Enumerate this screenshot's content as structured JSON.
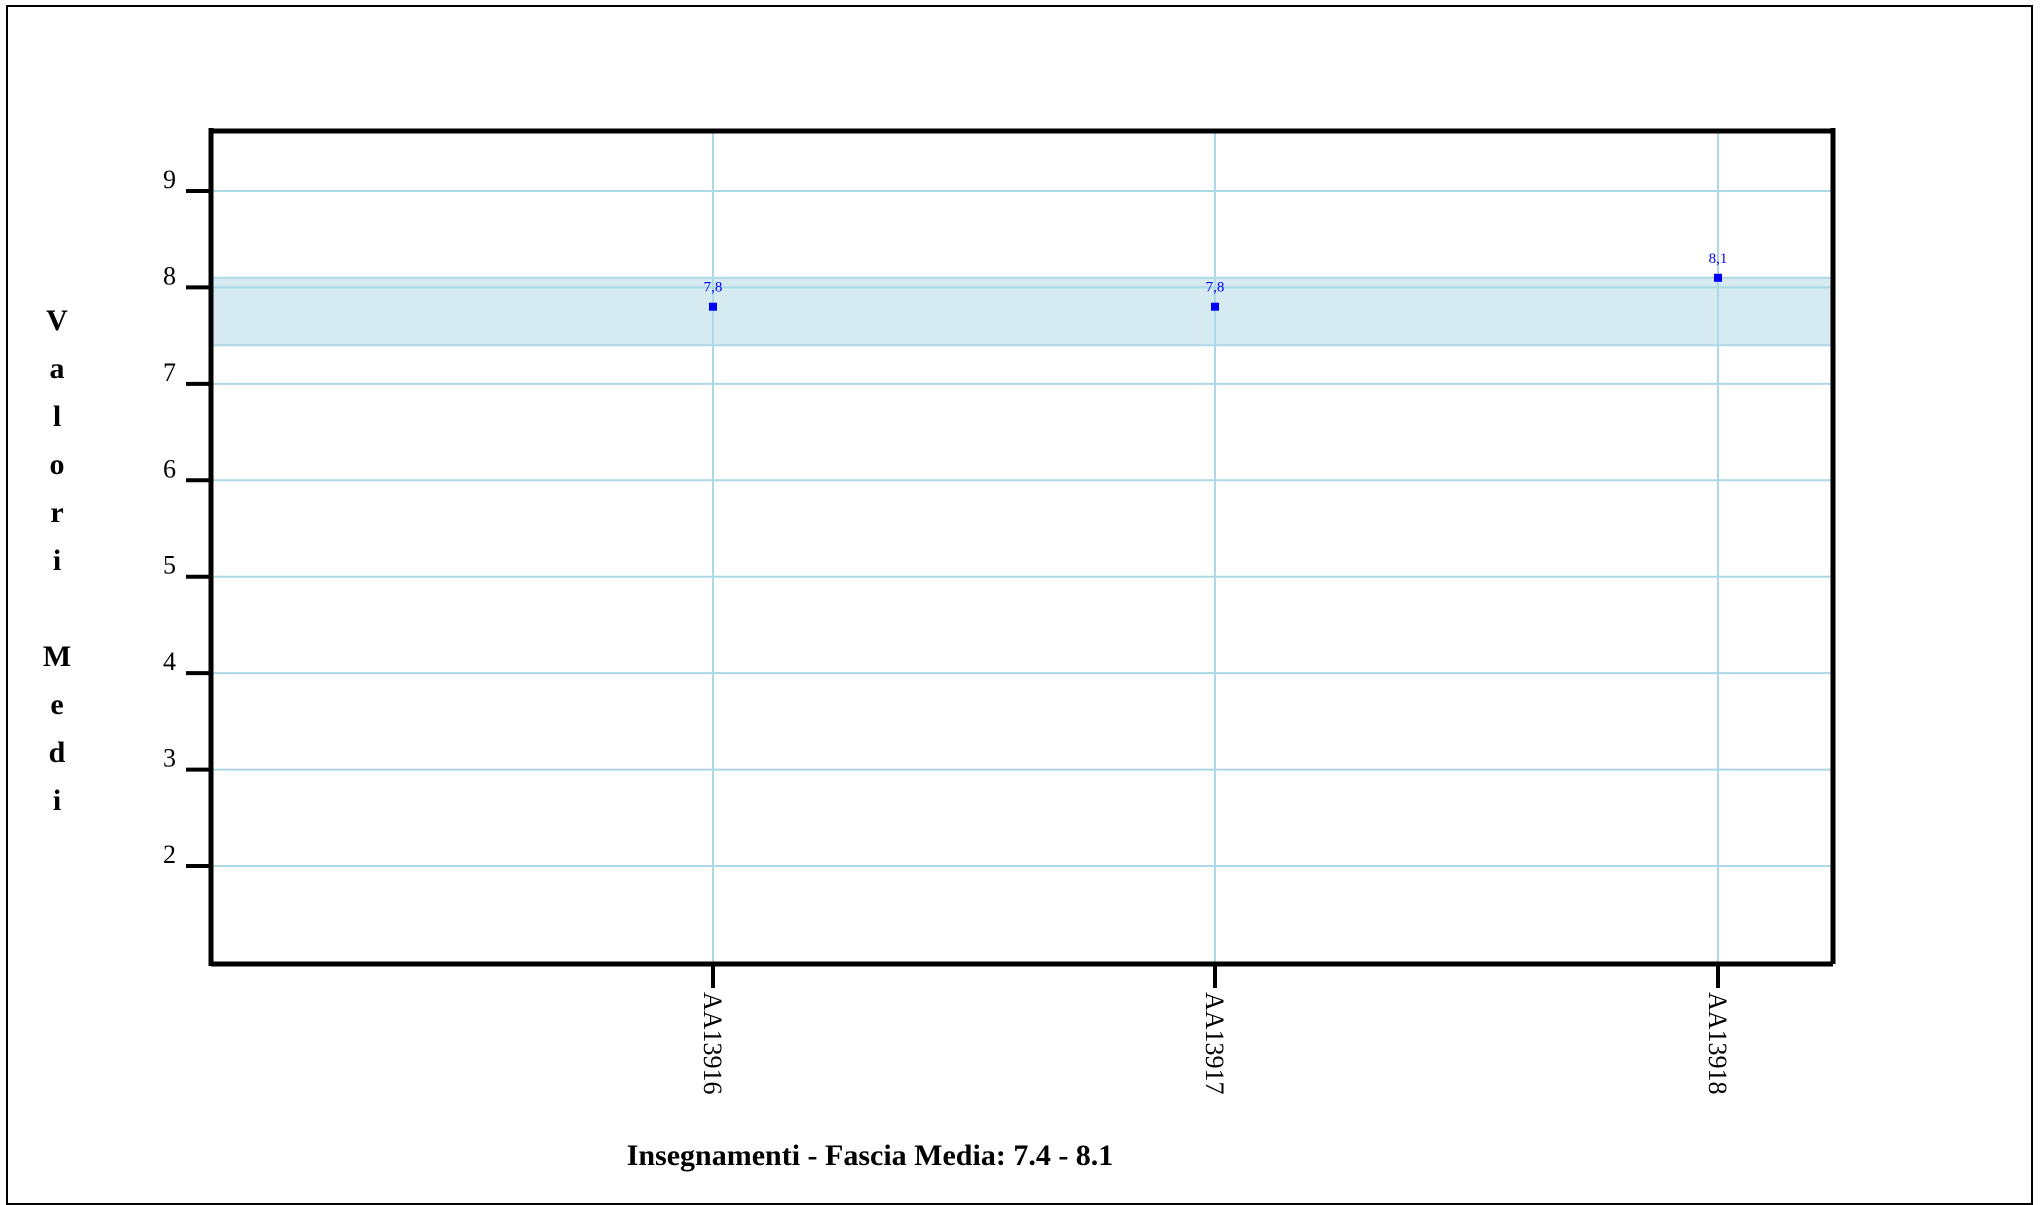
{
  "chart_data": {
    "type": "scatter",
    "title": "",
    "xlabel": "Insegnamenti - Fascia Media: 7.4 - 8.1",
    "ylabel": "Valori Medi",
    "categories": [
      "AA13916",
      "AA13917",
      "AA13918"
    ],
    "series": [
      {
        "values": [
          7.8,
          7.8,
          8.1
        ],
        "labels": [
          "7,8",
          "7,8",
          "8,1"
        ]
      }
    ],
    "yticks": [
      2,
      3,
      4,
      5,
      6,
      7,
      8,
      9
    ],
    "ylim": [
      1,
      9.6
    ],
    "band": [
      7.4,
      8.1
    ],
    "grid": true,
    "colors": {
      "grid": "#add8e6",
      "band": "#d6eaf2",
      "point": "#0000ff",
      "axis": "#000000"
    }
  }
}
